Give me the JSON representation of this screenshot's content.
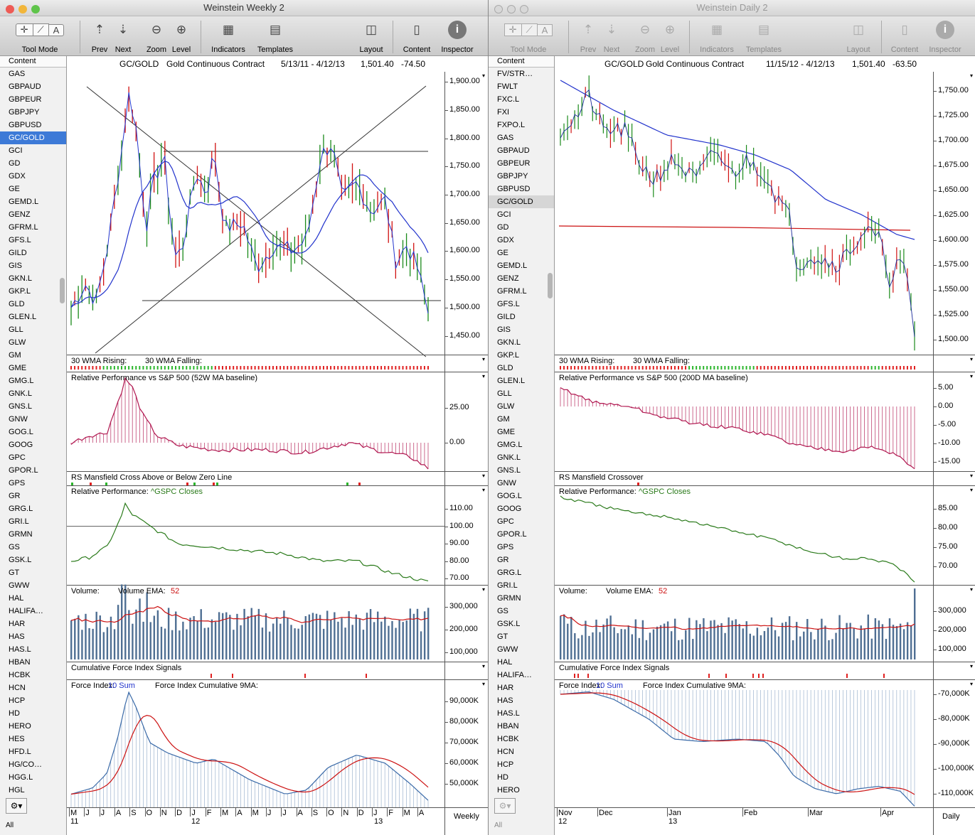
{
  "left": {
    "title": "Weinstein Weekly 2",
    "toolbar": {
      "tool_mode": "Tool Mode",
      "prev": "Prev",
      "next": "Next",
      "zoom": "Zoom",
      "level": "Level",
      "indicators": "Indicators",
      "templates": "Templates",
      "layout": "Layout",
      "content": "Content",
      "inspector": "Inspector"
    },
    "sidebar": {
      "header": "Content",
      "items": [
        "GAS",
        "GBPAUD",
        "GBPEUR",
        "GBPJPY",
        "GBPUSD",
        "GC/GOLD",
        "GCI",
        "GD",
        "GDX",
        "GE",
        "GEMD.L",
        "GENZ",
        "GFRM.L",
        "GFS.L",
        "GILD",
        "GIS",
        "GKN.L",
        "GKP.L",
        "GLD",
        "GLEN.L",
        "GLL",
        "GLW",
        "GM",
        "GME",
        "GMG.L",
        "GNK.L",
        "GNS.L",
        "GNW",
        "GOG.L",
        "GOOG",
        "GPC",
        "GPOR.L",
        "GPS",
        "GR",
        "GRG.L",
        "GRI.L",
        "GRMN",
        "GS",
        "GSK.L",
        "GT",
        "GWW",
        "HAL",
        "HALIFA…",
        "HAR",
        "HAS",
        "HAS.L",
        "HBAN",
        "HCBK",
        "HCN",
        "HCP",
        "HD",
        "HERO",
        "HES",
        "HFD.L",
        "HG/CO…",
        "HGG.L",
        "HGL"
      ],
      "selected": "GC/GOLD",
      "all_label": "All"
    },
    "header": {
      "symbol": "GC/GOLD",
      "name": "Gold Continuous Contract",
      "range": "5/13/11 - 4/12/13",
      "last": "1,501.40",
      "change": "-74.50"
    },
    "panels": {
      "wma": {
        "label1": "30 WMA Rising:",
        "label2": "30 WMA Falling:"
      },
      "relperf": {
        "label": "Relative Performance vs S&P 500 (52W MA baseline)",
        "ticks": [
          "25.00",
          "0.00"
        ]
      },
      "rsm": {
        "label": "RS Mansfield Cross Above or Below Zero Line"
      },
      "relgspc": {
        "label": "Relative Performance:",
        "series": "^GSPC Closes",
        "ticks": [
          "110.00",
          "100.00",
          "90.00",
          "80.00",
          "70.00"
        ]
      },
      "volume": {
        "label": "Volume:",
        "ema_label": "Volume EMA:",
        "ema_value": "52",
        "ticks": [
          "300,000",
          "200,000",
          "100,000"
        ]
      },
      "cfi": {
        "label": "Cumulative Force Index Signals"
      },
      "force": {
        "label": "Force Index:",
        "sum": "10 Sum",
        "cum_label": "Force Index Cumulative 9MA:",
        "ticks": [
          "90,000K",
          "80,000K",
          "70,000K",
          "60,000K",
          "50,000K"
        ]
      }
    },
    "price_ticks": [
      "1,900.00",
      "1,850.00",
      "1,800.00",
      "1,750.00",
      "1,700.00",
      "1,650.00",
      "1,600.00",
      "1,550.00",
      "1,500.00",
      "1,450.00"
    ],
    "x_months": [
      "M",
      "J",
      "J",
      "A",
      "S",
      "O",
      "N",
      "D",
      "J",
      "F",
      "M",
      "A",
      "M",
      "J",
      "J",
      "A",
      "S",
      "O",
      "N",
      "D",
      "J",
      "F",
      "M",
      "A"
    ],
    "x_years": [
      "11",
      "12",
      "13"
    ],
    "periodicity": "Weekly"
  },
  "right": {
    "title": "Weinstein Daily 2",
    "sidebar": {
      "header": "Content",
      "items": [
        "FV/STR…",
        "FWLT",
        "FXC.L",
        "FXI",
        "FXPO.L",
        "GAS",
        "GBPAUD",
        "GBPEUR",
        "GBPJPY",
        "GBPUSD",
        "GC/GOLD",
        "GCI",
        "GD",
        "GDX",
        "GE",
        "GEMD.L",
        "GENZ",
        "GFRM.L",
        "GFS.L",
        "GILD",
        "GIS",
        "GKN.L",
        "GKP.L",
        "GLD",
        "GLEN.L",
        "GLL",
        "GLW",
        "GM",
        "GME",
        "GMG.L",
        "GNK.L",
        "GNS.L",
        "GNW",
        "GOG.L",
        "GOOG",
        "GPC",
        "GPOR.L",
        "GPS",
        "GR",
        "GRG.L",
        "GRI.L",
        "GRMN",
        "GS",
        "GSK.L",
        "GT",
        "GWW",
        "HAL",
        "HALIFA…",
        "HAR",
        "HAS",
        "HAS.L",
        "HBAN",
        "HCBK",
        "HCN",
        "HCP",
        "HD",
        "HERO"
      ],
      "selected": "GC/GOLD",
      "all_label": "All"
    },
    "header": {
      "symbol": "GC/GOLD",
      "name": "Gold Continuous Contract",
      "range": "11/15/12 - 4/12/13",
      "last": "1,501.40",
      "change": "-63.50"
    },
    "panels": {
      "wma": {
        "label1": "30 WMA Rising:",
        "label2": "30 WMA Falling:"
      },
      "relperf": {
        "label": "Relative Performance vs S&P 500 (200D MA baseline)",
        "ticks": [
          "5.00",
          "0.00",
          "-5.00",
          "-10.00",
          "-15.00"
        ]
      },
      "rsm": {
        "label": "RS Mansfield Crossover"
      },
      "relgspc": {
        "label": "Relative Performance:",
        "series": "^GSPC Closes",
        "ticks": [
          "85.00",
          "80.00",
          "75.00",
          "70.00"
        ]
      },
      "volume": {
        "label": "Volume:",
        "ema_label": "Volume EMA:",
        "ema_value": "52",
        "ticks": [
          "300,000",
          "200,000",
          "100,000"
        ]
      },
      "cfi": {
        "label": "Cumulative Force Index Signals"
      },
      "force": {
        "label": "Force Index:",
        "sum": "10 Sum",
        "cum_label": "Force Index Cumulative 9MA:",
        "ticks": [
          "-70,000K",
          "-80,000K",
          "-90,000K",
          "-100,000K",
          "-110,000K"
        ]
      }
    },
    "price_ticks": [
      "1,750.00",
      "1,725.00",
      "1,700.00",
      "1,675.00",
      "1,650.00",
      "1,625.00",
      "1,600.00",
      "1,575.00",
      "1,550.00",
      "1,525.00",
      "1,500.00"
    ],
    "x_months": [
      "Nov",
      "Dec",
      "Jan",
      "Feb",
      "Mar",
      "Apr"
    ],
    "x_years": [
      "12",
      "13"
    ],
    "periodicity": "Daily"
  },
  "colors": {
    "price_up": "#1a8a1a",
    "price_down": "#d01010",
    "ma_blue": "#2233cc",
    "ma_red": "#cc1111",
    "relperf": "#b0164f",
    "gspc": "#2a7a1a",
    "volume": "#4f6f93",
    "selection": "#3d7ad7"
  }
}
